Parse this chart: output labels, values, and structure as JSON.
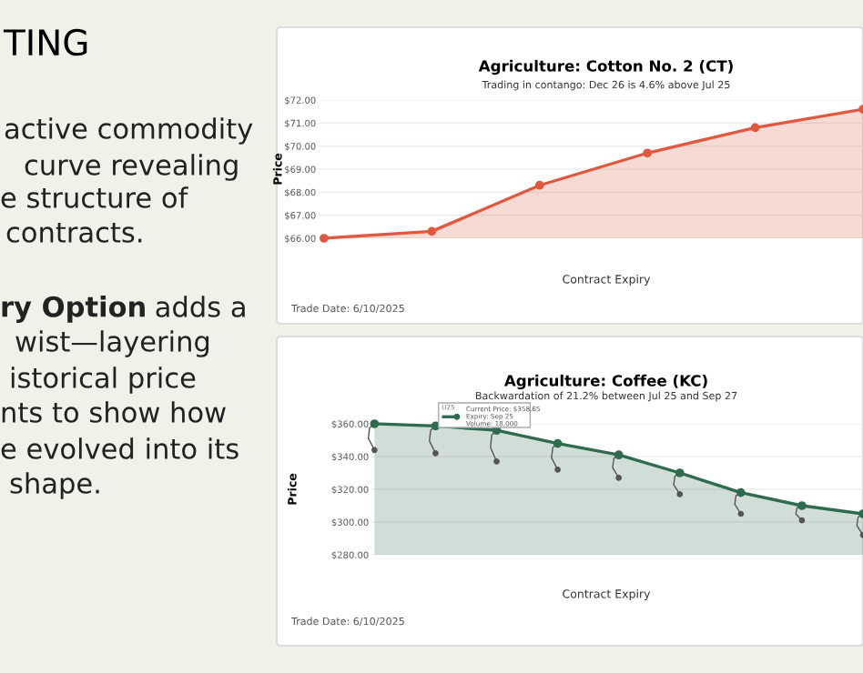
{
  "chart_data": [
    {
      "type": "other",
      "title": "TING",
      "annotations": [
        "active commodity",
        "curve revealing",
        "e structure of",
        "contracts.",
        "ry Option",
        " adds a",
        "wist—layering",
        "istorical price",
        "nts to show how",
        "e evolved into its",
        "shape."
      ]
    },
    {
      "type": "area",
      "title": "Agriculture: Cotton No. 2 (CT)",
      "subtitle": "Trading in contango: Dec 26 is 4.6% above Jul 25",
      "xlabel": "Contract Expiry",
      "ylabel": "Price",
      "categories": [
        null,
        null,
        null,
        null,
        null,
        null
      ],
      "series": [
        {
          "color": "#e0583e",
          "values": [
            66.0,
            66.3,
            68.3,
            69.7,
            70.8,
            71.6
          ]
        }
      ],
      "ylim": [
        66,
        72
      ],
      "yticks": [
        {
          "value": 66,
          "label": "$66.00"
        },
        {
          "value": 67,
          "label": "$67.00"
        },
        {
          "value": 68,
          "label": "$68.00"
        },
        {
          "value": 69,
          "label": "$69.00"
        },
        {
          "value": 70,
          "label": "$70.00"
        },
        {
          "value": 71,
          "label": "$71.00"
        },
        {
          "value": 72,
          "label": "$72.00"
        }
      ],
      "grid": "y",
      "marker": "circle",
      "annotations": [
        "Trade Date: 6/10/2025"
      ]
    },
    {
      "type": "area",
      "title": "Agriculture: Coffee (KC)",
      "subtitle": "Backwardation of 21.2% between Jul 25 and Sep 27",
      "xlabel": "Contract Expiry",
      "ylabel": "Price",
      "categories": [
        null,
        null,
        null,
        null,
        null,
        null,
        null,
        null,
        null
      ],
      "series": [
        {
          "color": "#2e6b4f",
          "values": [
            360,
            358.65,
            356,
            348,
            341,
            330,
            318,
            310,
            305
          ]
        },
        {
          "type": "scatter",
          "color": "#555555",
          "values": [
            344,
            342,
            337,
            332,
            327,
            317,
            305,
            301,
            292
          ]
        }
      ],
      "ylim": [
        280,
        360
      ],
      "yticks": [
        {
          "value": 280,
          "label": "$280.00"
        },
        {
          "value": 300,
          "label": "$300.00"
        },
        {
          "value": 320,
          "label": "$320.00"
        },
        {
          "value": 340,
          "label": "$340.00"
        },
        {
          "value": 360,
          "label": "$360.00"
        }
      ],
      "grid": "y",
      "marker": "circle",
      "annotations": [
        "Trade Date: 6/10/2025",
        "U25",
        "Current Price: $358.65\nExpiry: Sep 25\nVolume: 18,000"
      ]
    }
  ]
}
